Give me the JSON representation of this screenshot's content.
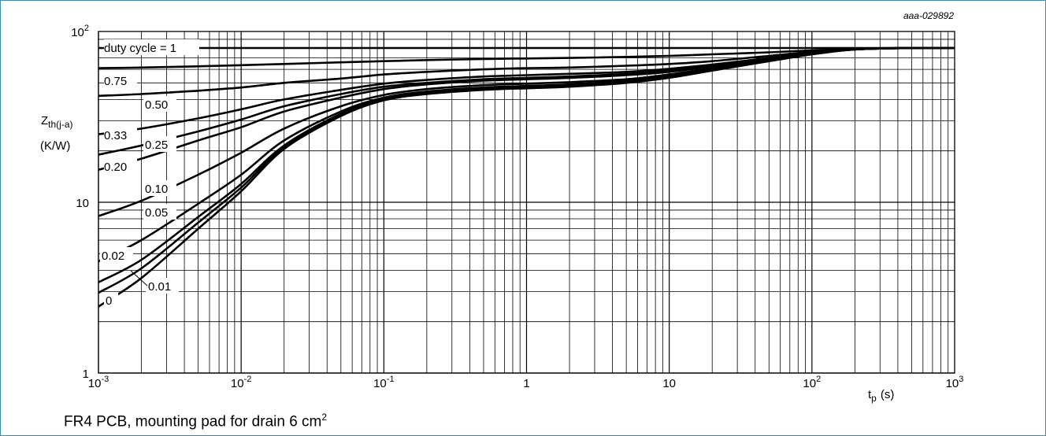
{
  "figure_id": "aaa-029892",
  "caption": {
    "text": "FR4 PCB, mounting pad for drain 6 cm",
    "superscript": "2"
  },
  "chart_data": {
    "type": "line",
    "x_scale": "log",
    "y_scale": "log",
    "xlim": [
      0.001,
      1000
    ],
    "ylim": [
      1,
      100
    ],
    "grid": true,
    "ylabel": {
      "main": "Z",
      "sub": "th(j-a)",
      "unit": "(K/W)"
    },
    "xlabel": {
      "main": "t",
      "sub": "p",
      "unit": "(s)"
    },
    "x_ticks": [
      {
        "value": 0.001,
        "base": "10",
        "exp": "-3"
      },
      {
        "value": 0.01,
        "base": "10",
        "exp": "-2"
      },
      {
        "value": 0.1,
        "base": "10",
        "exp": "-1"
      },
      {
        "value": 1,
        "base": "1",
        "exp": ""
      },
      {
        "value": 10,
        "base": "10",
        "exp": ""
      },
      {
        "value": 100,
        "base": "10",
        "exp": "2"
      },
      {
        "value": 1000,
        "base": "10",
        "exp": "3"
      }
    ],
    "y_ticks": [
      {
        "value": 1,
        "base": "1",
        "exp": ""
      },
      {
        "value": 10,
        "base": "10",
        "exp": ""
      },
      {
        "value": 100,
        "base": "10",
        "exp": "2"
      }
    ],
    "x": [
      0.001,
      0.002,
      0.005,
      0.01,
      0.02,
      0.05,
      0.1,
      0.2,
      0.5,
      1,
      2,
      5,
      10,
      20,
      50,
      100,
      200,
      500,
      1000
    ],
    "series": [
      {
        "name": "duty cycle = 1",
        "label": "duty cycle = 1",
        "values": [
          80,
          80,
          80,
          80,
          80,
          80,
          80,
          80,
          80,
          80,
          80,
          80,
          80,
          80,
          80,
          80,
          80,
          80,
          80
        ]
      },
      {
        "name": "0.75",
        "label": "0.75",
        "values": [
          61,
          61.5,
          62.5,
          63.5,
          64.5,
          66,
          67,
          68,
          69,
          69.5,
          70,
          71,
          72,
          73.5,
          75.5,
          77.5,
          79,
          80,
          80
        ]
      },
      {
        "name": "0.50",
        "label": "0.50",
        "values": [
          42,
          43,
          45,
          47,
          50,
          53,
          56,
          58,
          60,
          61,
          61.5,
          63,
          64.5,
          67,
          72,
          76,
          79,
          80,
          80
        ]
      },
      {
        "name": "0.33",
        "label": "0.33",
        "values": [
          25,
          27,
          31,
          35,
          40,
          45.5,
          49.5,
          52,
          54.5,
          55.5,
          56.5,
          58,
          60.5,
          64,
          70,
          75,
          79,
          80,
          80
        ]
      },
      {
        "name": "0.25",
        "label": "0.25",
        "values": [
          19,
          21.5,
          26,
          30.5,
          36.5,
          43,
          47.5,
          50,
          52.5,
          53.5,
          54.5,
          56.5,
          59,
          63,
          69.5,
          75,
          79,
          80,
          80
        ]
      },
      {
        "name": "0.20",
        "label": "0.20",
        "values": [
          15.5,
          18,
          23,
          27.5,
          34,
          41,
          46,
          49,
          51.5,
          52.5,
          53.5,
          55.5,
          58,
          62.5,
          69,
          74.5,
          79,
          80,
          80
        ]
      },
      {
        "name": "0.10",
        "label": "0.10",
        "values": [
          8.3,
          10.2,
          14.5,
          19.5,
          27,
          36.5,
          42.5,
          46,
          48.5,
          49.5,
          50.5,
          52.5,
          56,
          61,
          68,
          74,
          78.5,
          80,
          80
        ]
      },
      {
        "name": "0.05",
        "label": "0.05",
        "values": [
          4.5,
          6,
          9.8,
          14.5,
          23,
          34,
          41,
          44.5,
          47,
          48,
          49,
          51.5,
          55,
          60.5,
          67.5,
          74,
          78.5,
          80,
          80
        ]
      },
      {
        "name": "0.02",
        "label": "0.02",
        "values": [
          3.4,
          4.6,
          8.2,
          12.8,
          21.5,
          33,
          40.5,
          44,
          46.5,
          47.5,
          48.5,
          51,
          54.5,
          60,
          67.5,
          74,
          78.5,
          80,
          80
        ]
      },
      {
        "name": "0.01",
        "label": "0.01",
        "values": [
          2.95,
          4.1,
          7.6,
          12.2,
          21,
          32.5,
          40,
          43.5,
          46,
          47,
          48,
          50.5,
          54,
          59.5,
          67,
          73.5,
          78.5,
          80,
          80
        ]
      },
      {
        "name": "0",
        "label": "0",
        "values": [
          2.45,
          3.6,
          7,
          11.6,
          20.5,
          32,
          39.5,
          43,
          45.5,
          46.5,
          47.5,
          50,
          53.5,
          59,
          67,
          73.5,
          78.5,
          80,
          80
        ]
      }
    ]
  }
}
